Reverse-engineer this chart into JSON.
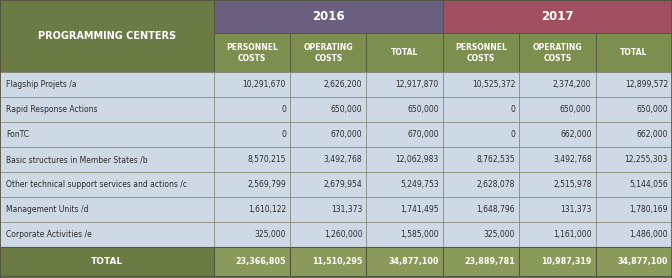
{
  "title_col": "PROGRAMMING CENTERS",
  "year1": "2016",
  "year2": "2017",
  "col_headers": [
    "PERSONNEL\nCOSTS",
    "OPERATING\nCOSTS",
    "TOTAL"
  ],
  "rows": [
    [
      "Flagship Projets /a",
      "10,291,670",
      "2,626,200",
      "12,917,870",
      "10,525,372",
      "2,374,200",
      "12,899,572"
    ],
    [
      "Rapid Response Actions",
      "0",
      "650,000",
      "650,000",
      "0",
      "650,000",
      "650,000"
    ],
    [
      "FonTC",
      "0",
      "670,000",
      "670,000",
      "0",
      "662,000",
      "662,000"
    ],
    [
      "Basic structures in Member States /b",
      "8,570,215",
      "3,492,768",
      "12,062,983",
      "8,762,535",
      "3,492,768",
      "12,255,303"
    ],
    [
      "Other technical support services and actions /c",
      "2,569,799",
      "2,679,954",
      "5,249,753",
      "2,628,078",
      "2,515,978",
      "5,144,056"
    ],
    [
      "Management Units /d",
      "1,610,122",
      "131,373",
      "1,741,495",
      "1,648,796",
      "131,373",
      "1,780,169"
    ],
    [
      "Corporate Activities /e",
      "325,000",
      "1,260,000",
      "1,585,000",
      "325,000",
      "1,161,000",
      "1,486,000"
    ]
  ],
  "total_row": [
    "TOTAL",
    "23,366,805",
    "11,510,295",
    "34,877,100",
    "23,889,781",
    "10,987,319",
    "34,877,100"
  ],
  "col0_bg": "#6b7b44",
  "year1_bg_top": "#7a6b8a",
  "year1_bg_bot": "#4a3a5a",
  "year2_bg_top": "#c08080",
  "year2_bg_bot": "#7a3535",
  "subhdr_bg": "#7d8f4e",
  "row_bg_even": "#cddae6",
  "row_bg_odd": "#cddae6",
  "total_col0_bg": "#6b7b44",
  "total_data_bg_2016": "#8a9a5b",
  "total_data_bg_2017": "#8a9a5b",
  "border_dark": "#555544",
  "border_mid": "#777766",
  "text_dark": "#2b2b2b",
  "text_white": "#ffffff",
  "figsize": [
    6.72,
    2.78
  ],
  "dpi": 100
}
